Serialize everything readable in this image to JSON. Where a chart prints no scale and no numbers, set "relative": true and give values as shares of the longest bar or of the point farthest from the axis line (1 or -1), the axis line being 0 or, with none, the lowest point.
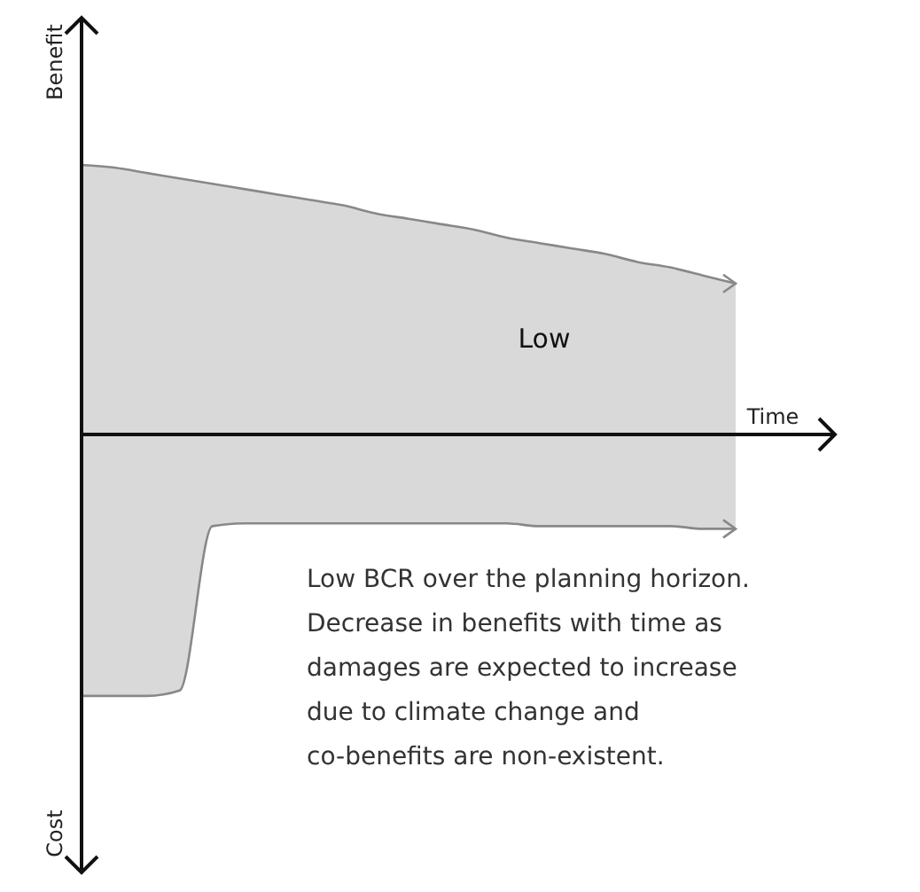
{
  "chart_data": {
    "type": "area",
    "relative": true,
    "xlabel": "Time",
    "ylabel": "Benefit",
    "categories": [
      null,
      null,
      null,
      null,
      null,
      null,
      null,
      null,
      null,
      null,
      null,
      null,
      null,
      null,
      null,
      null,
      null,
      null,
      null,
      null,
      null
    ],
    "series": [
      {
        "color": "#d9d9d9",
        "values": [
          1,
          0.99,
          0.97,
          0.95,
          0.93,
          0.91,
          0.89,
          0.87,
          0.85,
          0.82,
          0.8,
          0.78,
          0.76,
          0.73,
          0.71,
          0.69,
          0.67,
          0.64,
          0.62,
          0.59,
          0.56
        ]
      },
      {
        "color": "#d9d9d9",
        "values": [
          -0.97,
          -0.97,
          -0.97,
          -0.95,
          -0.34,
          -0.33,
          -0.33,
          -0.33,
          -0.33,
          -0.33,
          -0.33,
          -0.33,
          -0.33,
          -0.33,
          -0.34,
          -0.34,
          -0.34,
          -0.34,
          -0.34,
          -0.35,
          -0.35
        ]
      }
    ],
    "annotations": [
      "Cost",
      "Low",
      "Low BCR over the planning horizon.\nDecrease in benefits with time as\ndamages are expected to increase\ndue to climate change and\nco-benefits are non-existent."
    ]
  }
}
